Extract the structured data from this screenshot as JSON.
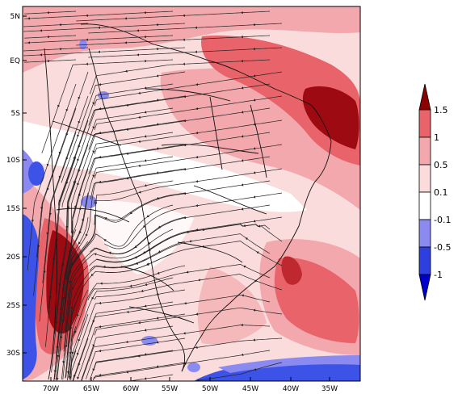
{
  "map": {
    "lat_labels": [
      "5N",
      "EQ",
      "5S",
      "10S",
      "15S",
      "20S",
      "25S",
      "30S"
    ],
    "lon_labels": [
      "70W",
      "65W",
      "60W",
      "55W",
      "50W",
      "45W",
      "40W",
      "35W"
    ]
  },
  "colorbar": {
    "labels": [
      "1.5",
      "1",
      "0.5",
      "0.1",
      "-0.1",
      "-0.5",
      "-1"
    ],
    "colors": [
      "#8b0000",
      "#e8646a",
      "#f2a8ac",
      "#fbdcdc",
      "#ffffff",
      "#8a8af0",
      "#2e3fe0",
      "#0000cc"
    ]
  },
  "colors": {
    "dark_red": "#9e0a12",
    "red": "#e8646a",
    "salmon": "#f2a8ac",
    "light_pink": "#fbdcdc",
    "white": "#ffffff",
    "light_blue": "#8a8af0",
    "blue": "#3d52e6",
    "streamline": "#222222",
    "border": "#111111"
  }
}
